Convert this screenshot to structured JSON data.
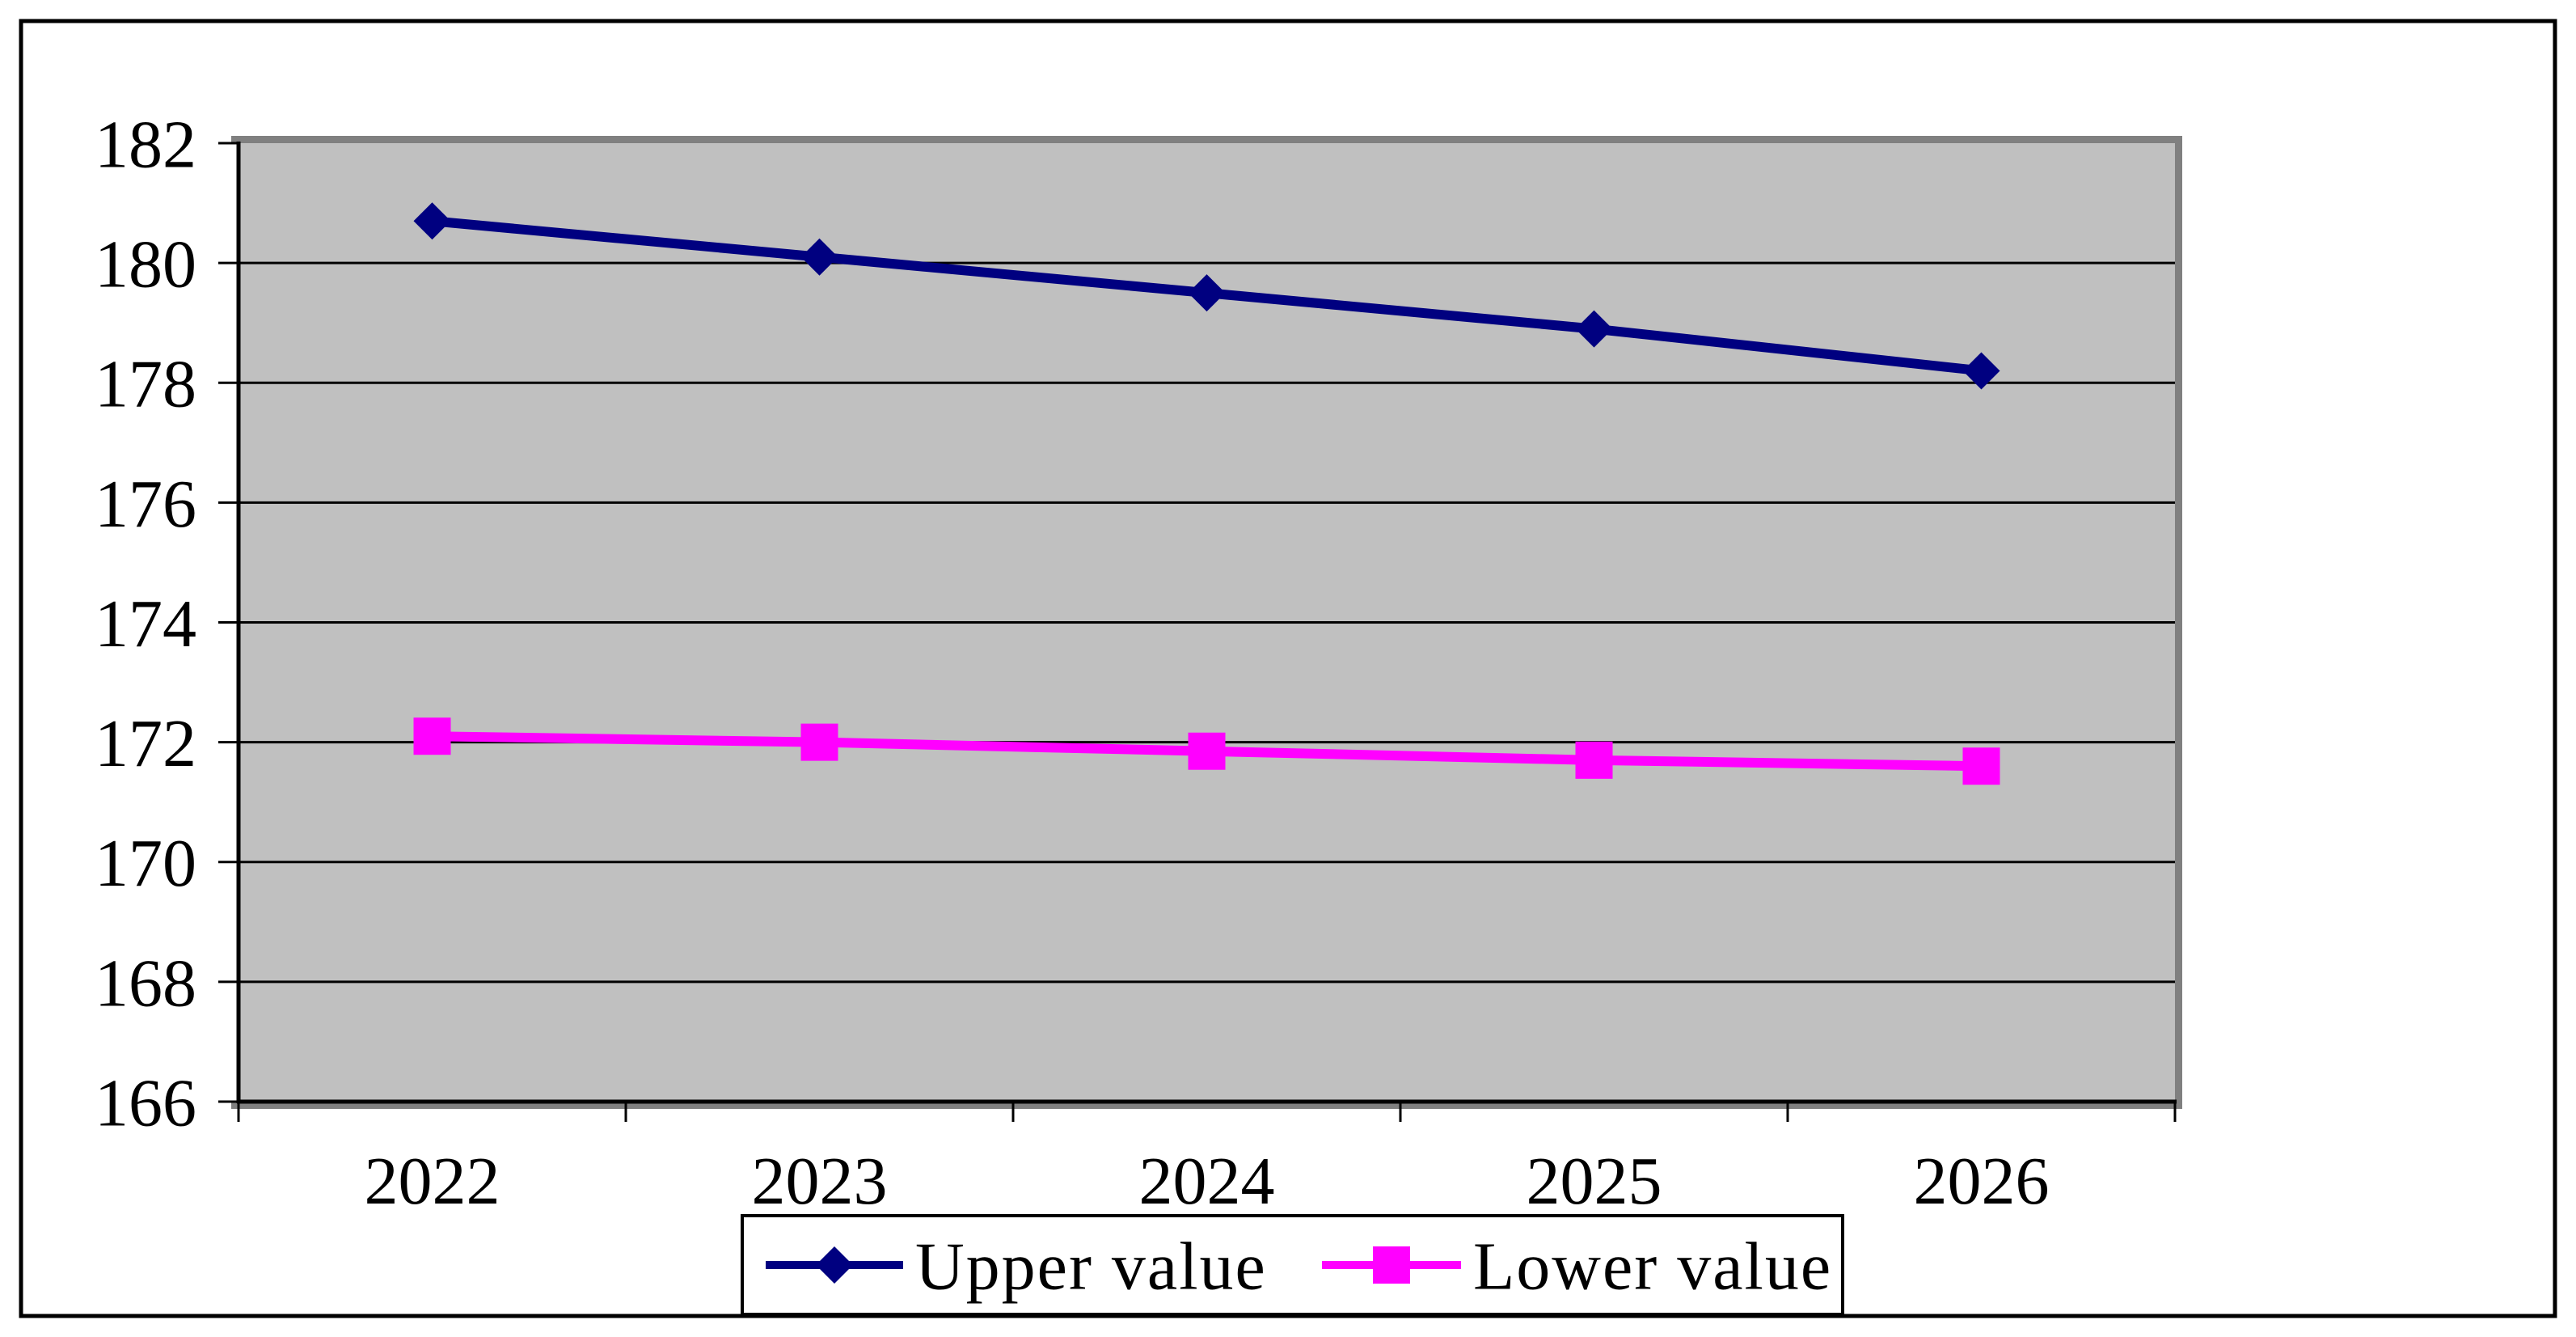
{
  "chart_data": {
    "type": "line",
    "title": "",
    "xlabel": "",
    "ylabel": "",
    "categories": [
      "2022",
      "2023",
      "2024",
      "2025",
      "2026"
    ],
    "series": [
      {
        "name": "Upper value",
        "color": "#000080",
        "marker": "diamond",
        "values": [
          180.7,
          180.1,
          179.5,
          178.9,
          178.2
        ]
      },
      {
        "name": "Lower value",
        "color": "#FF00FF",
        "marker": "square",
        "values": [
          172.1,
          172.0,
          171.85,
          171.7,
          171.6
        ]
      }
    ],
    "ylim": [
      166,
      182
    ],
    "yticks": [
      166,
      168,
      170,
      172,
      174,
      176,
      178,
      180,
      182
    ],
    "grid": "horizontal-major",
    "legend_position": "bottom-center",
    "legend_labels": [
      "Upper value",
      "Lower value"
    ],
    "colors": {
      "chart_bg": "#FFFFFF",
      "frame": "#000000",
      "plot_bg": "#C0C0C0",
      "plot_shadow": "#808080",
      "grid": "#000000",
      "axis": "#000000",
      "text": "#000000"
    }
  }
}
